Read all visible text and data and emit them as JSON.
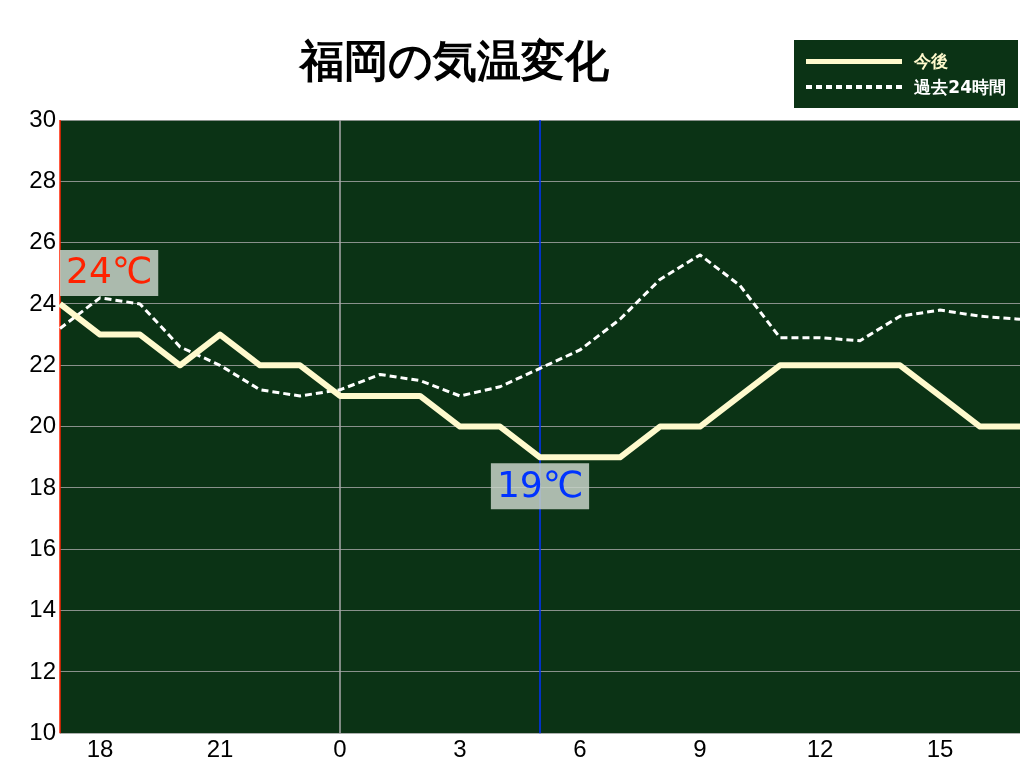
{
  "chart_data": {
    "type": "line",
    "title": "福岡の気温変化",
    "categories": [
      null,
      "18",
      null,
      null,
      "21",
      null,
      null,
      "0",
      null,
      null,
      "3",
      null,
      null,
      "6",
      null,
      null,
      "9",
      null,
      null,
      "12",
      null,
      null,
      "15",
      null,
      null
    ],
    "series": [
      {
        "name": "今後",
        "color": "#fffacd",
        "line_style": "solid",
        "values": [
          24,
          23,
          23,
          22,
          23,
          22,
          22,
          21,
          21,
          21,
          20,
          20,
          19,
          19,
          19,
          20,
          20,
          21,
          22,
          22,
          22,
          22,
          21,
          20,
          20
        ]
      },
      {
        "name": "過去24時間",
        "color": "#ffffff",
        "line_style": "dashed",
        "values": [
          23.2,
          24.2,
          24.0,
          22.6,
          22.0,
          21.2,
          21.0,
          21.2,
          21.7,
          21.5,
          21.0,
          21.3,
          21.9,
          22.5,
          23.5,
          24.8,
          25.6,
          24.6,
          22.9,
          22.9,
          22.8,
          23.6,
          23.8,
          23.6,
          23.5
        ]
      }
    ],
    "ylim": [
      10,
      30
    ],
    "yticks": [
      10,
      12,
      14,
      16,
      18,
      20,
      22,
      24,
      26,
      28,
      30
    ],
    "grid": "y",
    "legend": "top right",
    "marker": "none",
    "ref_lines": [
      {
        "axis": "x",
        "value": "0",
        "color": "#aaaaaa"
      }
    ],
    "annotations": [
      {
        "text": "24℃",
        "y": 24
      },
      {
        "text": "19℃",
        "y": 19
      }
    ]
  }
}
